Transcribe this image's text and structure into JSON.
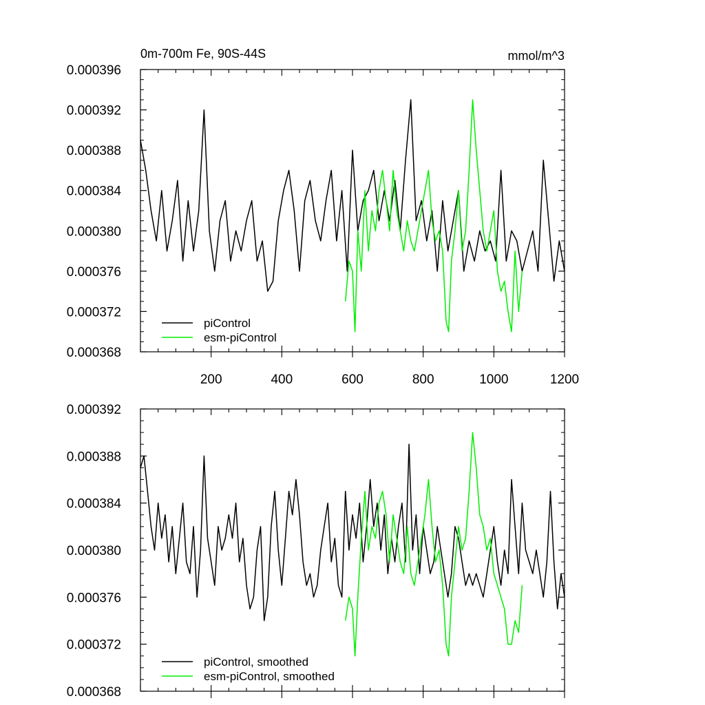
{
  "chart_data": [
    {
      "type": "line",
      "title": "0m-700m Fe, 90S-44S",
      "units": "mmol/m^3",
      "xlim": [
        0,
        1200
      ],
      "ylim": [
        0.000368,
        0.000396
      ],
      "x_ticks": [
        "200",
        "400",
        "600",
        "800",
        "1000",
        "1200"
      ],
      "y_ticks": [
        "0.000396",
        "0.000392",
        "0.000388",
        "0.000384",
        "0.000380",
        "0.000376",
        "0.000372",
        "0.000368"
      ],
      "series": [
        {
          "name": "piControl",
          "color": "#000000",
          "x": [
            0,
            15,
            30,
            45,
            60,
            75,
            90,
            105,
            120,
            135,
            150,
            165,
            180,
            195,
            210,
            225,
            240,
            255,
            270,
            285,
            300,
            315,
            330,
            345,
            360,
            375,
            390,
            405,
            420,
            435,
            450,
            465,
            480,
            495,
            510,
            525,
            540,
            555,
            570,
            585,
            600,
            615,
            630,
            645,
            660,
            675,
            690,
            705,
            720,
            735,
            750,
            765,
            780,
            795,
            810,
            825,
            840,
            855,
            870,
            885,
            900,
            915,
            930,
            945,
            960,
            975,
            990,
            1005,
            1020,
            1035,
            1050,
            1065,
            1080,
            1095,
            1110,
            1125,
            1140,
            1155,
            1170,
            1185,
            1200
          ],
          "values": [
            0.000389,
            0.000386,
            0.000382,
            0.000379,
            0.000384,
            0.000378,
            0.000381,
            0.000385,
            0.000377,
            0.000383,
            0.000378,
            0.000382,
            0.000392,
            0.00038,
            0.000376,
            0.000381,
            0.000383,
            0.000377,
            0.00038,
            0.000378,
            0.000381,
            0.000383,
            0.000377,
            0.000379,
            0.000374,
            0.000375,
            0.000381,
            0.000384,
            0.000386,
            0.000382,
            0.000376,
            0.000383,
            0.000385,
            0.000381,
            0.000379,
            0.000383,
            0.000386,
            0.000379,
            0.000384,
            0.000376,
            0.000388,
            0.00038,
            0.000383,
            0.000384,
            0.000386,
            0.000381,
            0.000384,
            0.000381,
            0.000385,
            0.00038,
            0.000387,
            0.000393,
            0.000381,
            0.000383,
            0.000379,
            0.000382,
            0.000376,
            0.000383,
            0.000378,
            0.000381,
            0.000384,
            0.000376,
            0.000379,
            0.000377,
            0.00038,
            0.000378,
            0.000379,
            0.000377,
            0.000386,
            0.000377,
            0.00038,
            0.000379,
            0.000376,
            0.000378,
            0.00038,
            0.000376,
            0.000387,
            0.000381,
            0.000375,
            0.000379,
            0.000376
          ]
        },
        {
          "name": "esm-piControl",
          "color": "#00ee00",
          "x": [
            580,
            590,
            600,
            607,
            615,
            625,
            635,
            645,
            655,
            665,
            675,
            685,
            695,
            705,
            715,
            725,
            735,
            745,
            755,
            765,
            775,
            785,
            795,
            805,
            815,
            825,
            835,
            845,
            855,
            865,
            872,
            880,
            890,
            900,
            910,
            920,
            930,
            940,
            950,
            960,
            970,
            980,
            990,
            1000,
            1010,
            1020,
            1030,
            1040,
            1050,
            1060,
            1070,
            1080
          ],
          "values": [
            0.000373,
            0.000377,
            0.000376,
            0.00037,
            0.00038,
            0.000376,
            0.000384,
            0.000378,
            0.000382,
            0.00038,
            0.000384,
            0.000386,
            0.000383,
            0.00038,
            0.000386,
            0.000382,
            0.00038,
            0.000378,
            0.000381,
            0.000379,
            0.000378,
            0.00038,
            0.000382,
            0.000384,
            0.000386,
            0.000381,
            0.000379,
            0.00038,
            0.000378,
            0.000371,
            0.00037,
            0.000377,
            0.00038,
            0.000384,
            0.000378,
            0.00038,
            0.000386,
            0.000393,
            0.000388,
            0.000384,
            0.00038,
            0.000378,
            0.00038,
            0.000382,
            0.000376,
            0.000374,
            0.000375,
            0.000372,
            0.00037,
            0.000378,
            0.000372,
            0.000376
          ]
        }
      ]
    },
    {
      "type": "line",
      "title": "",
      "units": "",
      "xlim": [
        0,
        1200
      ],
      "ylim": [
        0.000368,
        0.000392
      ],
      "x_ticks": [],
      "y_ticks": [
        "0.000392",
        "0.000388",
        "0.000384",
        "0.000380",
        "0.000376",
        "0.000372",
        "0.000368"
      ],
      "series": [
        {
          "name": "piControl, smoothed",
          "color": "#000000",
          "x": [
            0,
            10,
            20,
            30,
            40,
            50,
            60,
            70,
            80,
            90,
            100,
            110,
            120,
            130,
            140,
            150,
            160,
            170,
            180,
            190,
            200,
            210,
            220,
            230,
            240,
            250,
            260,
            270,
            280,
            290,
            300,
            310,
            320,
            330,
            340,
            350,
            360,
            370,
            380,
            390,
            400,
            410,
            420,
            430,
            440,
            450,
            460,
            470,
            480,
            490,
            500,
            510,
            520,
            530,
            540,
            550,
            560,
            570,
            580,
            590,
            600,
            610,
            620,
            630,
            640,
            650,
            660,
            670,
            680,
            690,
            700,
            710,
            720,
            730,
            740,
            750,
            760,
            770,
            780,
            790,
            800,
            810,
            820,
            830,
            840,
            850,
            860,
            870,
            880,
            890,
            900,
            910,
            920,
            930,
            940,
            950,
            960,
            970,
            980,
            990,
            1000,
            1010,
            1020,
            1030,
            1040,
            1050,
            1060,
            1070,
            1080,
            1090,
            1100,
            1110,
            1120,
            1130,
            1140,
            1150,
            1160,
            1170,
            1180,
            1190,
            1200
          ],
          "values": [
            0.000387,
            0.000388,
            0.000385,
            0.000382,
            0.00038,
            0.000384,
            0.000381,
            0.000383,
            0.000379,
            0.000382,
            0.000378,
            0.000381,
            0.000384,
            0.000379,
            0.000378,
            0.000382,
            0.000376,
            0.00038,
            0.000388,
            0.000381,
            0.000379,
            0.000377,
            0.000382,
            0.00038,
            0.000381,
            0.000383,
            0.000381,
            0.000384,
            0.000379,
            0.000381,
            0.000377,
            0.000375,
            0.000376,
            0.00038,
            0.000382,
            0.000374,
            0.000376,
            0.000382,
            0.000385,
            0.00038,
            0.000377,
            0.000381,
            0.000385,
            0.000383,
            0.000386,
            0.000383,
            0.000379,
            0.000377,
            0.000378,
            0.000376,
            0.000377,
            0.00038,
            0.000382,
            0.000384,
            0.000379,
            0.000381,
            0.000377,
            0.000376,
            0.000385,
            0.00038,
            0.000383,
            0.000381,
            0.000384,
            0.000379,
            0.000382,
            0.000386,
            0.000382,
            0.000384,
            0.00038,
            0.000383,
            0.000378,
            0.000381,
            0.000379,
            0.000382,
            0.000384,
            0.000379,
            0.000389,
            0.00038,
            0.000383,
            0.000378,
            0.000382,
            0.00038,
            0.000378,
            0.000379,
            0.000382,
            0.00038,
            0.000378,
            0.000376,
            0.000378,
            0.000382,
            0.000381,
            0.000379,
            0.000377,
            0.000378,
            0.000377,
            0.000378,
            0.000377,
            0.000376,
            0.000378,
            0.00038,
            0.000382,
            0.000379,
            0.000377,
            0.00038,
            0.000378,
            0.000386,
            0.000382,
            0.000378,
            0.000384,
            0.00038,
            0.000379,
            0.000378,
            0.00038,
            0.000378,
            0.000376,
            0.000379,
            0.000385,
            0.000379,
            0.000375,
            0.000378,
            0.000376
          ]
        },
        {
          "name": "esm-piControl, smoothed",
          "color": "#00ee00",
          "x": [
            580,
            590,
            600,
            607,
            615,
            625,
            635,
            645,
            655,
            665,
            675,
            685,
            695,
            705,
            715,
            725,
            735,
            745,
            755,
            765,
            775,
            785,
            795,
            805,
            815,
            825,
            835,
            845,
            855,
            865,
            872,
            880,
            890,
            900,
            910,
            920,
            930,
            940,
            950,
            960,
            970,
            980,
            990,
            1000,
            1010,
            1020,
            1030,
            1040,
            1050,
            1060,
            1070,
            1080
          ],
          "values": [
            0.000374,
            0.000376,
            0.000375,
            0.000371,
            0.000376,
            0.000381,
            0.000385,
            0.00038,
            0.000382,
            0.000381,
            0.000384,
            0.000385,
            0.000383,
            0.000379,
            0.000383,
            0.000381,
            0.000379,
            0.000378,
            0.000382,
            0.000378,
            0.000377,
            0.000379,
            0.000381,
            0.000383,
            0.000386,
            0.000382,
            0.000379,
            0.00038,
            0.000377,
            0.000372,
            0.000371,
            0.000376,
            0.000379,
            0.000382,
            0.00038,
            0.000381,
            0.000385,
            0.00039,
            0.000387,
            0.000383,
            0.000382,
            0.00038,
            0.000381,
            0.000378,
            0.000377,
            0.000376,
            0.000375,
            0.000372,
            0.000372,
            0.000374,
            0.000373,
            0.000377
          ]
        }
      ]
    }
  ]
}
